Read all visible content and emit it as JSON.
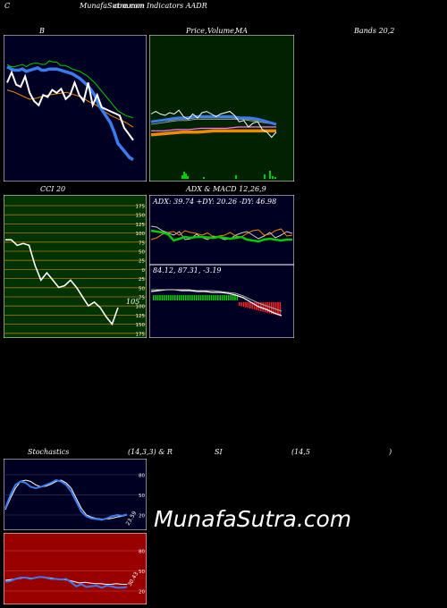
{
  "header": {
    "top_left": "C",
    "title": "MunafaSutra.com",
    "subtitle": "common Indicators AADR"
  },
  "labels": {
    "bollinger": "B",
    "price_ma": "Price,",
    "volume": "Volume,",
    "ma": "MA",
    "bands": "Bands 20,2",
    "cci": "CCI 20",
    "adx_macd": "ADX  & MACD 12,26,9",
    "stoch_a": "Stochastics",
    "stoch_b": "(14,3,3) & R",
    "rsi_a": "SI",
    "rsi_b": "(14,5",
    "rsi_c": ")"
  },
  "watermark": "MunafaSutra.com",
  "colors": {
    "panel_navy": "#000022",
    "panel_green_dark": "#002200",
    "panel_olive": "#003300",
    "panel_red": "#990000",
    "blue_line": "#3a7bf0",
    "orange_line": "#f08a00",
    "green_line": "#00cc00"
  },
  "chart_data": [
    {
      "id": "bollinger",
      "type": "line",
      "series": [
        {
          "values": [
            68,
            66,
            63,
            60,
            61,
            63,
            64,
            65,
            66,
            64,
            62,
            58,
            55,
            50,
            46,
            43,
            40,
            36
          ]
        },
        {
          "values": [
            90,
            88,
            88,
            89,
            90,
            88,
            90,
            91,
            91,
            90,
            90,
            93,
            92,
            92,
            89,
            89,
            88,
            86,
            85,
            84,
            82,
            80,
            77,
            74,
            70,
            66,
            62,
            58,
            54,
            50,
            48,
            46,
            45,
            44
          ]
        },
        {
          "values": [
            88,
            86,
            85,
            85,
            86,
            84,
            85,
            86,
            87,
            85,
            85,
            86,
            86,
            86,
            85,
            84,
            83,
            82,
            80,
            78,
            75,
            72,
            68,
            63,
            55,
            50,
            45,
            40,
            32,
            22,
            18,
            14,
            10,
            8
          ]
        },
        {
          "values": [
            46,
            50,
            55,
            56,
            57,
            57,
            58,
            58,
            59,
            59,
            60,
            60,
            61,
            60,
            59,
            58,
            56,
            53,
            49,
            45,
            40,
            35,
            30,
            25,
            22,
            18,
            14,
            10,
            6,
            3
          ]
        }
      ]
    },
    {
      "id": "price_ma",
      "type": "line",
      "series": [
        {
          "values": [
            70,
            72,
            70,
            69,
            71,
            70,
            73,
            68,
            66,
            70,
            67,
            71,
            72,
            70,
            68,
            70,
            71,
            72,
            69,
            64,
            65,
            60,
            63,
            64,
            58,
            56,
            52,
            56
          ]
        },
        {
          "values": [
            64,
            65,
            66,
            67,
            67,
            68,
            68,
            68,
            68,
            68,
            67,
            67,
            66,
            64,
            62
          ]
        },
        {
          "values": [
            57,
            57,
            58,
            58,
            59,
            59,
            59,
            60,
            60,
            60,
            60
          ]
        },
        {
          "values": [
            54,
            55,
            56,
            56,
            57,
            57,
            57,
            57,
            57
          ]
        }
      ]
    },
    {
      "id": "cci",
      "type": "line",
      "ylabels": [
        "175",
        "150",
        "125",
        "100",
        "75",
        "50",
        "25",
        "0",
        "25",
        "50",
        "75",
        "100",
        "125",
        "150",
        "175"
      ],
      "last_value": "105",
      "series": [
        {
          "values": [
            80,
            80,
            65,
            70,
            65,
            10,
            -30,
            -10,
            -30,
            -50,
            -45,
            -30,
            -50,
            -75,
            -100,
            -90,
            -105,
            -130,
            -150,
            -105
          ]
        }
      ]
    },
    {
      "id": "adx",
      "type": "line",
      "text": "ADX: 39.74  +DY: 20.26  -DY: 46.98",
      "series": [
        {
          "name": "ADX",
          "values": [
            39.74
          ]
        },
        {
          "name": "+DY",
          "values": [
            20.26
          ]
        },
        {
          "name": "-DY",
          "values": [
            46.98
          ]
        }
      ]
    },
    {
      "id": "macd",
      "type": "bar",
      "text": "84.12,  87.31,  -3.19",
      "series": [
        {
          "name": "MACD",
          "values": [
            84.12
          ]
        },
        {
          "name": "Signal",
          "values": [
            87.31
          ]
        },
        {
          "name": "Hist",
          "values": [
            -3.19
          ]
        }
      ]
    },
    {
      "id": "stochastics",
      "type": "line",
      "ylabels": [
        "80",
        "50",
        "20"
      ],
      "last_value": "23.59",
      "ylim": [
        0,
        100
      ],
      "series": [
        {
          "values": [
            30,
            50,
            65,
            70,
            68,
            62,
            60,
            62,
            65,
            68,
            72,
            70,
            65,
            55,
            40,
            25,
            18,
            15,
            14,
            13,
            15,
            18,
            20,
            19,
            21
          ]
        },
        {
          "values": [
            28,
            45,
            60,
            70,
            72,
            70,
            65,
            62,
            63,
            66,
            70,
            72,
            68,
            60,
            45,
            30,
            20,
            17,
            15,
            14,
            14,
            15,
            17,
            18,
            20
          ]
        }
      ]
    },
    {
      "id": "rsi",
      "type": "line",
      "ylabels": [
        "80",
        "50",
        "20"
      ],
      "last_value": "30.43",
      "ylim": [
        0,
        100
      ],
      "series": [
        {
          "values": [
            36,
            37,
            38,
            39,
            40,
            39,
            40,
            41,
            40,
            39,
            38,
            37,
            36,
            34,
            32,
            33,
            32,
            31,
            31,
            30,
            30,
            31,
            30,
            30
          ]
        },
        {
          "values": [
            34,
            35,
            38,
            40,
            40,
            38,
            40,
            41,
            40,
            38,
            38,
            37,
            38,
            33,
            27,
            30,
            26,
            27,
            28,
            25,
            28,
            27,
            25,
            25,
            26
          ]
        }
      ]
    }
  ]
}
